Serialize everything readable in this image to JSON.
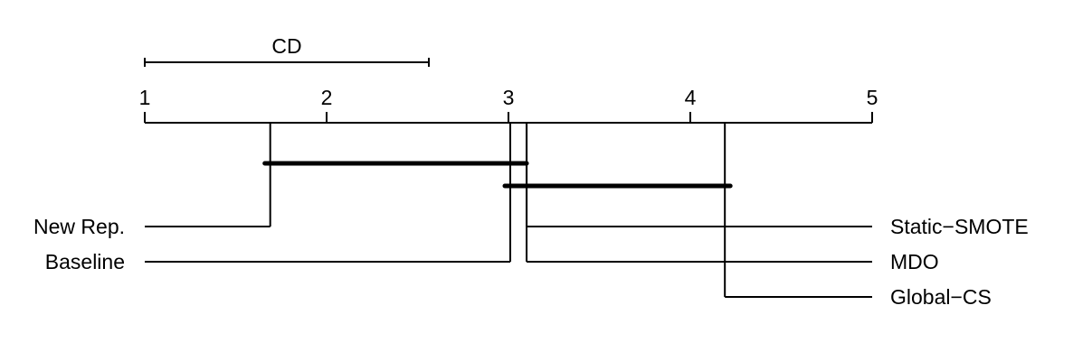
{
  "chart_data": {
    "type": "critical-difference-diagram",
    "cd_label": "CD",
    "cd_value": 1.56,
    "axis": {
      "min": 1,
      "max": 5,
      "ticks": [
        "1",
        "2",
        "3",
        "4",
        "5"
      ]
    },
    "methods": [
      {
        "name": "New Rep.",
        "rank": 1.69,
        "side": "left"
      },
      {
        "name": "Baseline",
        "rank": 3.01,
        "side": "left"
      },
      {
        "name": "Static−SMOTE",
        "rank": 3.07,
        "side": "right"
      },
      {
        "name": "MDO",
        "rank": 3.07,
        "side": "right"
      },
      {
        "name": "Global−CS",
        "rank": 4.19,
        "side": "right"
      }
    ],
    "cliques": [
      {
        "from": 1.69,
        "to": 3.07
      },
      {
        "from": 3.01,
        "to": 4.19
      }
    ]
  }
}
